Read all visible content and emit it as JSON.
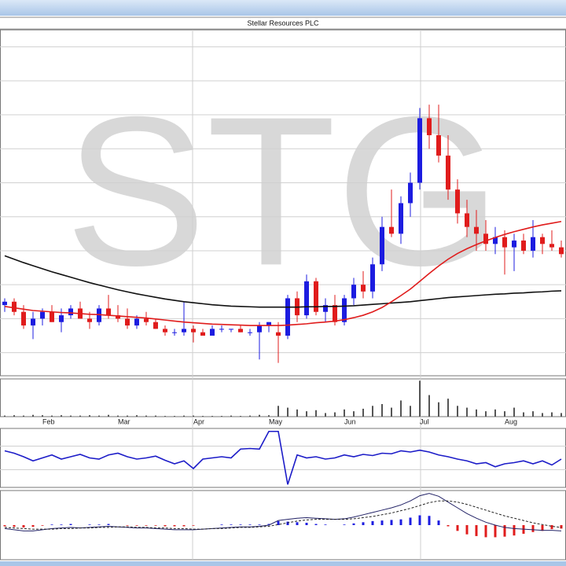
{
  "title": "Stellar Resources PLC",
  "watermark": "STG",
  "chart_data": [
    {
      "type": "candlestick",
      "up_color": "#1c1ce0",
      "down_color": "#e01c1c",
      "ylim": [
        3.2,
        105
      ],
      "yticks": [
        10,
        20,
        30,
        40,
        50,
        60,
        70,
        80,
        90,
        100
      ],
      "grid": true,
      "open": [
        24,
        25,
        22,
        18,
        20,
        22,
        19,
        21,
        23,
        20,
        19,
        23,
        21,
        20,
        18,
        20,
        19,
        17,
        16,
        16,
        17,
        16,
        15,
        17,
        17,
        17,
        16,
        16,
        18,
        16,
        15,
        26,
        21,
        31,
        22,
        24,
        19,
        26,
        30,
        28,
        36,
        47,
        45,
        54,
        60,
        79,
        74,
        68,
        58,
        51,
        47,
        45,
        42,
        44,
        41,
        43,
        40,
        44,
        42,
        41
      ],
      "high": [
        26,
        26,
        24,
        22,
        23,
        24,
        23,
        24,
        25,
        22,
        24,
        27,
        24,
        23,
        21,
        22,
        20,
        18,
        17,
        25,
        18,
        17,
        18,
        18,
        17,
        18,
        17,
        19,
        19,
        19,
        27,
        28,
        33,
        32,
        26,
        27,
        27,
        32,
        34,
        38,
        50,
        58,
        56,
        63,
        82,
        83,
        83,
        74,
        61,
        55,
        52,
        49,
        47,
        46,
        45,
        45,
        49,
        45,
        46,
        43
      ],
      "low": [
        22,
        21,
        17,
        14,
        18,
        19,
        16,
        20,
        20,
        17,
        18,
        20,
        19,
        17,
        17,
        18,
        17,
        15,
        15,
        15,
        13,
        15,
        15,
        16,
        16,
        16,
        15,
        8,
        16,
        7,
        14,
        19,
        20,
        21,
        19,
        18,
        18,
        24,
        26,
        26,
        34,
        44,
        42,
        50,
        58,
        70,
        66,
        55,
        48,
        44,
        40,
        40,
        39,
        33,
        34,
        39,
        38,
        39,
        40,
        38
      ],
      "close": [
        25,
        22,
        18,
        20,
        22,
        19,
        21,
        23,
        20,
        19,
        23,
        21,
        20,
        18,
        20,
        19,
        17,
        16,
        16,
        17,
        16,
        15,
        17,
        17,
        17,
        16,
        16,
        18,
        19,
        15,
        26,
        21,
        31,
        22,
        24,
        19,
        26,
        30,
        28,
        36,
        47,
        45,
        54,
        60,
        79,
        74,
        68,
        58,
        51,
        47,
        45,
        42,
        44,
        41,
        43,
        40,
        44,
        42,
        41,
        39
      ],
      "series": [
        {
          "color": "#111111",
          "values": [
            38.5,
            37.5,
            36.5,
            35.6,
            34.7,
            33.8,
            33,
            32.2,
            31.4,
            30.6,
            29.9,
            29.2,
            28.5,
            27.9,
            27.3,
            26.8,
            26.3,
            25.8,
            25.4,
            25,
            24.7,
            24.4,
            24.1,
            23.9,
            23.7,
            23.6,
            23.5,
            23.4,
            23.4,
            23.4,
            23.4,
            23.4,
            23.5,
            23.5,
            23.6,
            23.6,
            23.7,
            23.8,
            24,
            24.2,
            24.4,
            24.6,
            24.8,
            25,
            25.3,
            25.6,
            25.9,
            26.2,
            26.4,
            26.6,
            26.8,
            27,
            27.2,
            27.3,
            27.5,
            27.6,
            27.8,
            27.9,
            28.1,
            28.2
          ]
        },
        {
          "color": "#e01c1c",
          "values": [
            23.6,
            23.2,
            22.8,
            22.4,
            22.2,
            22,
            21.8,
            21.7,
            21.5,
            21.3,
            21.2,
            21,
            20.8,
            20.6,
            20.4,
            20.2,
            19.9,
            19.6,
            19.3,
            19,
            18.8,
            18.6,
            18.4,
            18.3,
            18.2,
            18.1,
            18,
            18,
            18,
            18,
            18.1,
            18.3,
            18.5,
            18.8,
            19,
            19.3,
            19.7,
            20.3,
            21,
            22,
            23.3,
            25,
            26.8,
            28.7,
            31,
            33.3,
            35.5,
            37.5,
            39.2,
            40.6,
            41.8,
            42.9,
            43.9,
            44.8,
            45.6,
            46.3,
            47,
            47.6,
            48.1,
            48.6
          ]
        }
      ]
    },
    {
      "type": "bar",
      "color": "#555555",
      "ylim": [
        0,
        105
      ],
      "categories": [
        null,
        null,
        null,
        null,
        "Feb",
        null,
        null,
        null,
        null,
        null,
        null,
        null,
        "Mar",
        null,
        null,
        null,
        null,
        null,
        null,
        null,
        "Apr",
        null,
        null,
        null,
        null,
        null,
        null,
        null,
        "May",
        null,
        null,
        null,
        null,
        null,
        null,
        null,
        "Jun",
        null,
        null,
        null,
        null,
        null,
        null,
        null,
        "Jul",
        null,
        null,
        null,
        null,
        null,
        null,
        null,
        null,
        "Aug",
        null,
        null,
        null,
        null,
        null,
        null
      ],
      "values": [
        3,
        4,
        3,
        5,
        4,
        3,
        4,
        3,
        3,
        4,
        3,
        5,
        3,
        3,
        4,
        3,
        3,
        2,
        2,
        3,
        3,
        2,
        2,
        2,
        3,
        2,
        3,
        5,
        4,
        30,
        25,
        20,
        15,
        18,
        10,
        12,
        20,
        15,
        22,
        30,
        35,
        25,
        45,
        30,
        100,
        60,
        40,
        50,
        30,
        25,
        20,
        15,
        20,
        15,
        25,
        12,
        15,
        10,
        12,
        10
      ]
    },
    {
      "type": "line",
      "color": "#1c1cc8",
      "ylim": [
        0,
        100
      ],
      "yticks": [
        30,
        70
      ],
      "grid": true,
      "values": [
        62,
        58,
        52,
        45,
        50,
        55,
        48,
        52,
        56,
        50,
        48,
        55,
        58,
        52,
        48,
        50,
        53,
        46,
        40,
        45,
        32,
        48,
        50,
        52,
        50,
        65,
        66,
        65,
        95,
        95,
        5,
        55,
        50,
        52,
        48,
        50,
        55,
        52,
        56,
        54,
        58,
        57,
        62,
        60,
        63,
        60,
        55,
        52,
        48,
        45,
        40,
        42,
        35,
        40,
        42,
        45,
        40,
        45,
        38,
        48
      ]
    },
    {
      "type": "macd",
      "ylim": [
        -6,
        6
      ],
      "up_color": "#1c1ce0",
      "down_color": "#e01c1c",
      "histogram": [
        -0.2,
        -0.3,
        -0.4,
        -0.3,
        -0.1,
        0.1,
        0.1,
        0.2,
        0,
        0.1,
        0.1,
        0.2,
        0,
        -0.1,
        -0.1,
        -0.1,
        -0.1,
        -0.2,
        -0.2,
        -0.2,
        -0.1,
        0,
        0,
        0.1,
        0.1,
        0.1,
        0.1,
        0.1,
        0.2,
        0.7,
        0.6,
        0.5,
        0.4,
        0.2,
        0.1,
        0,
        0.1,
        0.3,
        0.5,
        0.7,
        0.8,
        0.9,
        1,
        1.3,
        1.7,
        1.6,
        0.8,
        -0.2,
        -1,
        -1.6,
        -1.9,
        -2.1,
        -2.1,
        -2,
        -1.8,
        -1.5,
        -1.2,
        -1,
        -0.7,
        -0.6
      ],
      "series": [
        {
          "color": "#222266",
          "values": [
            -0.6,
            -0.8,
            -1,
            -1,
            -0.8,
            -0.6,
            -0.5,
            -0.4,
            -0.5,
            -0.4,
            -0.3,
            -0.2,
            -0.3,
            -0.4,
            -0.5,
            -0.5,
            -0.6,
            -0.7,
            -0.8,
            -0.8,
            -0.8,
            -0.7,
            -0.6,
            -0.5,
            -0.4,
            -0.3,
            -0.3,
            -0.2,
            0,
            0.8,
            1,
            1.2,
            1.3,
            1.2,
            1.1,
            1,
            1.1,
            1.4,
            1.8,
            2.2,
            2.6,
            3,
            3.5,
            4.2,
            5.1,
            5.5,
            5,
            4,
            3,
            2,
            1.2,
            0.5,
            0,
            -0.4,
            -0.6,
            -0.7,
            -0.8,
            -0.9,
            -0.9,
            -1
          ]
        },
        {
          "color": "#222222",
          "dashed": true,
          "values": [
            -0.4,
            -0.5,
            -0.6,
            -0.7,
            -0.7,
            -0.7,
            -0.6,
            -0.6,
            -0.5,
            -0.5,
            -0.4,
            -0.4,
            -0.3,
            -0.3,
            -0.4,
            -0.4,
            -0.5,
            -0.5,
            -0.6,
            -0.6,
            -0.7,
            -0.7,
            -0.6,
            -0.6,
            -0.5,
            -0.4,
            -0.4,
            -0.3,
            -0.2,
            0.1,
            0.4,
            0.7,
            0.9,
            1,
            1,
            1,
            1,
            1.1,
            1.3,
            1.5,
            1.8,
            2.1,
            2.5,
            2.9,
            3.4,
            3.9,
            4.2,
            4.2,
            4,
            3.6,
            3.1,
            2.6,
            2.1,
            1.6,
            1.2,
            0.8,
            0.4,
            0.1,
            -0.2,
            -0.4
          ]
        }
      ]
    }
  ]
}
